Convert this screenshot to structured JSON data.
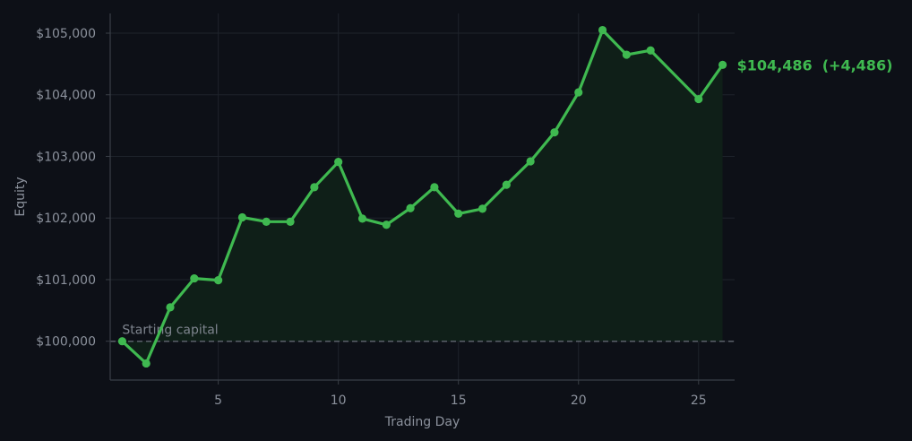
{
  "colors": {
    "background": "#0d1017",
    "line": "#3fb950",
    "fill": "#0f1f18",
    "grid": "#1e232b",
    "axis": "#3a3f47",
    "reference": "#5a6069",
    "text": "#8b919c"
  },
  "chart_data": {
    "type": "line",
    "title": "",
    "xlabel": "Trading Day",
    "ylabel": "Equity",
    "xlim": [
      0.5,
      26.5
    ],
    "ylim": [
      99370,
      105320
    ],
    "x_ticks": [
      5,
      10,
      15,
      20,
      25
    ],
    "y_ticks": [
      100000,
      101000,
      102000,
      103000,
      104000,
      105000
    ],
    "y_tick_labels": [
      "$100,000",
      "$101,000",
      "$102,000",
      "$103,000",
      "$104,000",
      "$105,000"
    ],
    "grid": true,
    "series": [
      {
        "x": [
          1,
          2,
          3,
          4,
          5,
          6,
          7,
          8,
          9,
          10,
          11,
          12,
          13,
          14,
          15,
          16,
          17,
          18,
          19,
          20,
          21,
          22,
          23,
          25,
          26
        ],
        "values": [
          100000,
          99640,
          100550,
          101020,
          100990,
          102010,
          101940,
          101940,
          102500,
          102910,
          101990,
          101890,
          102160,
          102500,
          102070,
          102150,
          102540,
          102920,
          103390,
          104040,
          105050,
          104650,
          104720,
          103930,
          104486
        ]
      }
    ],
    "reference_line": {
      "y": 100000,
      "label": "Starting capital"
    },
    "end_annotation": "$104,486  (+4,486)"
  }
}
